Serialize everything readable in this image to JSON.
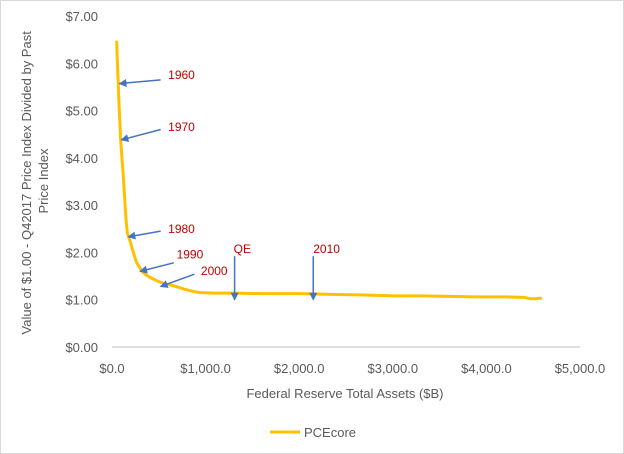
{
  "chart_data": {
    "type": "line",
    "xlabel": "Federal Reserve Total Assets ($B)",
    "ylabel_lines": [
      "Value of $1.00  - Q42017 Price Index Divided by Past",
      "Price Index"
    ],
    "xlim": [
      0,
      5000
    ],
    "ylim": [
      0,
      7
    ],
    "x_ticks": [
      0,
      1000,
      2000,
      3000,
      4000,
      5000
    ],
    "x_tick_labels": [
      "$0.0",
      "$1,000.0",
      "$2,000.0",
      "$3,000.0",
      "$4,000.0",
      "$5,000.0"
    ],
    "y_ticks": [
      0,
      1,
      2,
      3,
      4,
      5,
      6,
      7
    ],
    "y_tick_labels": [
      "$0.00",
      "$1.00",
      "$2.00",
      "$3.00",
      "$4.00",
      "$5.00",
      "$6.00",
      "$7.00"
    ],
    "grid": false,
    "legend_position": "bottom",
    "series": [
      {
        "name": "PCEcore",
        "color": "#ffc000",
        "points": [
          [
            50,
            6.45
          ],
          [
            55,
            6.2
          ],
          [
            60,
            5.9
          ],
          [
            66,
            5.6
          ],
          [
            72,
            5.3
          ],
          [
            78,
            5.0
          ],
          [
            85,
            4.7
          ],
          [
            92,
            4.4
          ],
          [
            100,
            4.15
          ],
          [
            110,
            3.9
          ],
          [
            120,
            3.65
          ],
          [
            130,
            3.3
          ],
          [
            140,
            3.0
          ],
          [
            150,
            2.7
          ],
          [
            165,
            2.4
          ],
          [
            180,
            2.32
          ],
          [
            200,
            2.2
          ],
          [
            220,
            2.05
          ],
          [
            240,
            1.92
          ],
          [
            260,
            1.8
          ],
          [
            290,
            1.7
          ],
          [
            320,
            1.6
          ],
          [
            360,
            1.53
          ],
          [
            400,
            1.48
          ],
          [
            450,
            1.43
          ],
          [
            500,
            1.38
          ],
          [
            550,
            1.35
          ],
          [
            600,
            1.32
          ],
          [
            650,
            1.3
          ],
          [
            700,
            1.27
          ],
          [
            760,
            1.23
          ],
          [
            820,
            1.2
          ],
          [
            880,
            1.17
          ],
          [
            950,
            1.15
          ],
          [
            1100,
            1.14
          ],
          [
            1300,
            1.14
          ],
          [
            1600,
            1.13
          ],
          [
            2000,
            1.13
          ],
          [
            2200,
            1.12
          ],
          [
            2400,
            1.11
          ],
          [
            2700,
            1.1
          ],
          [
            2900,
            1.09
          ],
          [
            3000,
            1.08
          ],
          [
            3300,
            1.08
          ],
          [
            3600,
            1.07
          ],
          [
            3900,
            1.06
          ],
          [
            4200,
            1.06
          ],
          [
            4400,
            1.05
          ],
          [
            4450,
            1.03
          ],
          [
            4480,
            1.02
          ],
          [
            4520,
            1.02
          ],
          [
            4560,
            1.03
          ],
          [
            4580,
            1.03
          ]
        ]
      }
    ],
    "annotations": [
      {
        "label": "1960",
        "text_x": 600,
        "text_y": 5.75,
        "arrow_from": [
          520,
          5.65
        ],
        "arrow_to": [
          80,
          5.57
        ]
      },
      {
        "label": "1970",
        "text_x": 600,
        "text_y": 4.65,
        "arrow_from": [
          520,
          4.6
        ],
        "arrow_to": [
          100,
          4.38
        ]
      },
      {
        "label": "1980",
        "text_x": 600,
        "text_y": 2.5,
        "arrow_from": [
          520,
          2.45
        ],
        "arrow_to": [
          175,
          2.33
        ]
      },
      {
        "label": "1990",
        "text_x": 690,
        "text_y": 1.96,
        "arrow_from": [
          660,
          1.78
        ],
        "arrow_to": [
          300,
          1.6
        ]
      },
      {
        "label": "2000",
        "text_x": 950,
        "text_y": 1.61,
        "arrow_from": [
          880,
          1.54
        ],
        "arrow_to": [
          520,
          1.28
        ]
      },
      {
        "label": "QE",
        "text_x": 1300,
        "text_y": 2.07,
        "arrow_from": [
          1310,
          1.92
        ],
        "arrow_to": [
          1310,
          1.0
        ]
      },
      {
        "label": "2010",
        "text_x": 2150,
        "text_y": 2.07,
        "arrow_from": [
          2150,
          1.92
        ],
        "arrow_to": [
          2150,
          1.0
        ]
      }
    ]
  }
}
